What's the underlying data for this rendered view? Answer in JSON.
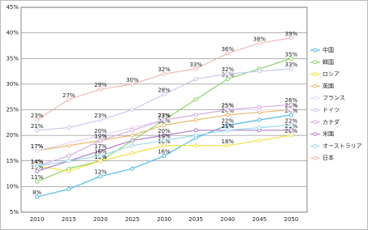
{
  "chart_data": {
    "type": "line",
    "categories": [
      2010,
      2015,
      2020,
      2025,
      2030,
      2035,
      2040,
      2045,
      2050
    ],
    "ylim": [
      5,
      45
    ],
    "yticks": [
      {
        "value": 5,
        "label": "5%"
      },
      {
        "value": 10,
        "label": "10%"
      },
      {
        "value": 15,
        "label": "15%"
      },
      {
        "value": 20,
        "label": "20%"
      },
      {
        "value": 25,
        "label": "25%"
      },
      {
        "value": 30,
        "label": "30%"
      },
      {
        "value": 35,
        "label": "35%"
      },
      {
        "value": 40,
        "label": "40%"
      },
      {
        "value": 45,
        "label": "45%"
      }
    ],
    "grid": true,
    "legend": "right",
    "series": [
      {
        "name": "中国",
        "color": "#4fb8e8",
        "values": [
          8,
          9.5,
          12,
          13.5,
          16,
          19.5,
          22,
          23,
          24
        ],
        "value_labels": [
          "8%",
          null,
          "12%",
          null,
          "16%",
          null,
          "22%",
          null,
          "24%"
        ]
      },
      {
        "name": "韓国",
        "color": "#8cd46a",
        "values": [
          11,
          13.5,
          15,
          19,
          23,
          27,
          31,
          33,
          35
        ],
        "value_labels": [
          "11%",
          null,
          "15%",
          null,
          "23%",
          null,
          "31%",
          null,
          "35%"
        ]
      },
      {
        "name": "ロシア",
        "color": "#f5e04a",
        "values": [
          14,
          13,
          15,
          16.5,
          18,
          18,
          18,
          19,
          20
        ],
        "value_labels": [
          "14%",
          null,
          "15%",
          null,
          "18%",
          null,
          "18%",
          null,
          "20%"
        ]
      },
      {
        "name": "英国",
        "color": "#e8b86a",
        "values": [
          17,
          18,
          19,
          20,
          22,
          23,
          24,
          24.5,
          25
        ],
        "value_labels": [
          "17%",
          null,
          "19%",
          null,
          "22%",
          null,
          "24%",
          null,
          "25%"
        ]
      },
      {
        "name": "フランス",
        "color": "#e6d6f4",
        "values": [
          17,
          18.5,
          20,
          21.5,
          23,
          24,
          25,
          25,
          25
        ],
        "value_labels": [
          "17%",
          null,
          "20%",
          null,
          "23%",
          null,
          "25%",
          null,
          "25%"
        ]
      },
      {
        "name": "ドイツ",
        "color": "#c8c8f0",
        "values": [
          21,
          21.5,
          23,
          25,
          28,
          31,
          32,
          32.5,
          33
        ],
        "value_labels": [
          "21%",
          null,
          "23%",
          null,
          "28%",
          null,
          "32%",
          null,
          "33%"
        ]
      },
      {
        "name": "カナダ",
        "color": "#d4aee0",
        "values": [
          14,
          16,
          19,
          21,
          23,
          24,
          25,
          25.5,
          26
        ],
        "value_labels": [
          "14%",
          null,
          "19%",
          null,
          "23%",
          null,
          "25%",
          null,
          "26%"
        ]
      },
      {
        "name": "米国",
        "color": "#b080c8",
        "values": [
          13,
          15,
          17,
          19,
          20,
          21,
          21,
          21,
          21
        ],
        "value_labels": [
          "13%",
          null,
          "17%",
          null,
          "20%",
          null,
          "21%",
          null,
          "21%"
        ]
      },
      {
        "name": "オーストラリア",
        "color": "#9fd8ee",
        "values": [
          14,
          15,
          16,
          18,
          19,
          20,
          21,
          21.5,
          22
        ],
        "value_labels": [
          "14%",
          null,
          "16%",
          null,
          "19%",
          null,
          "21%",
          null,
          "22%"
        ]
      },
      {
        "name": "日本",
        "color": "#f4b8b8",
        "values": [
          23,
          27,
          29,
          30,
          32,
          33,
          36,
          38,
          39
        ],
        "value_labels": [
          "23%",
          "27%",
          "29%",
          "30%",
          "32%",
          "33%",
          "36%",
          "38%",
          "39%"
        ]
      }
    ]
  }
}
